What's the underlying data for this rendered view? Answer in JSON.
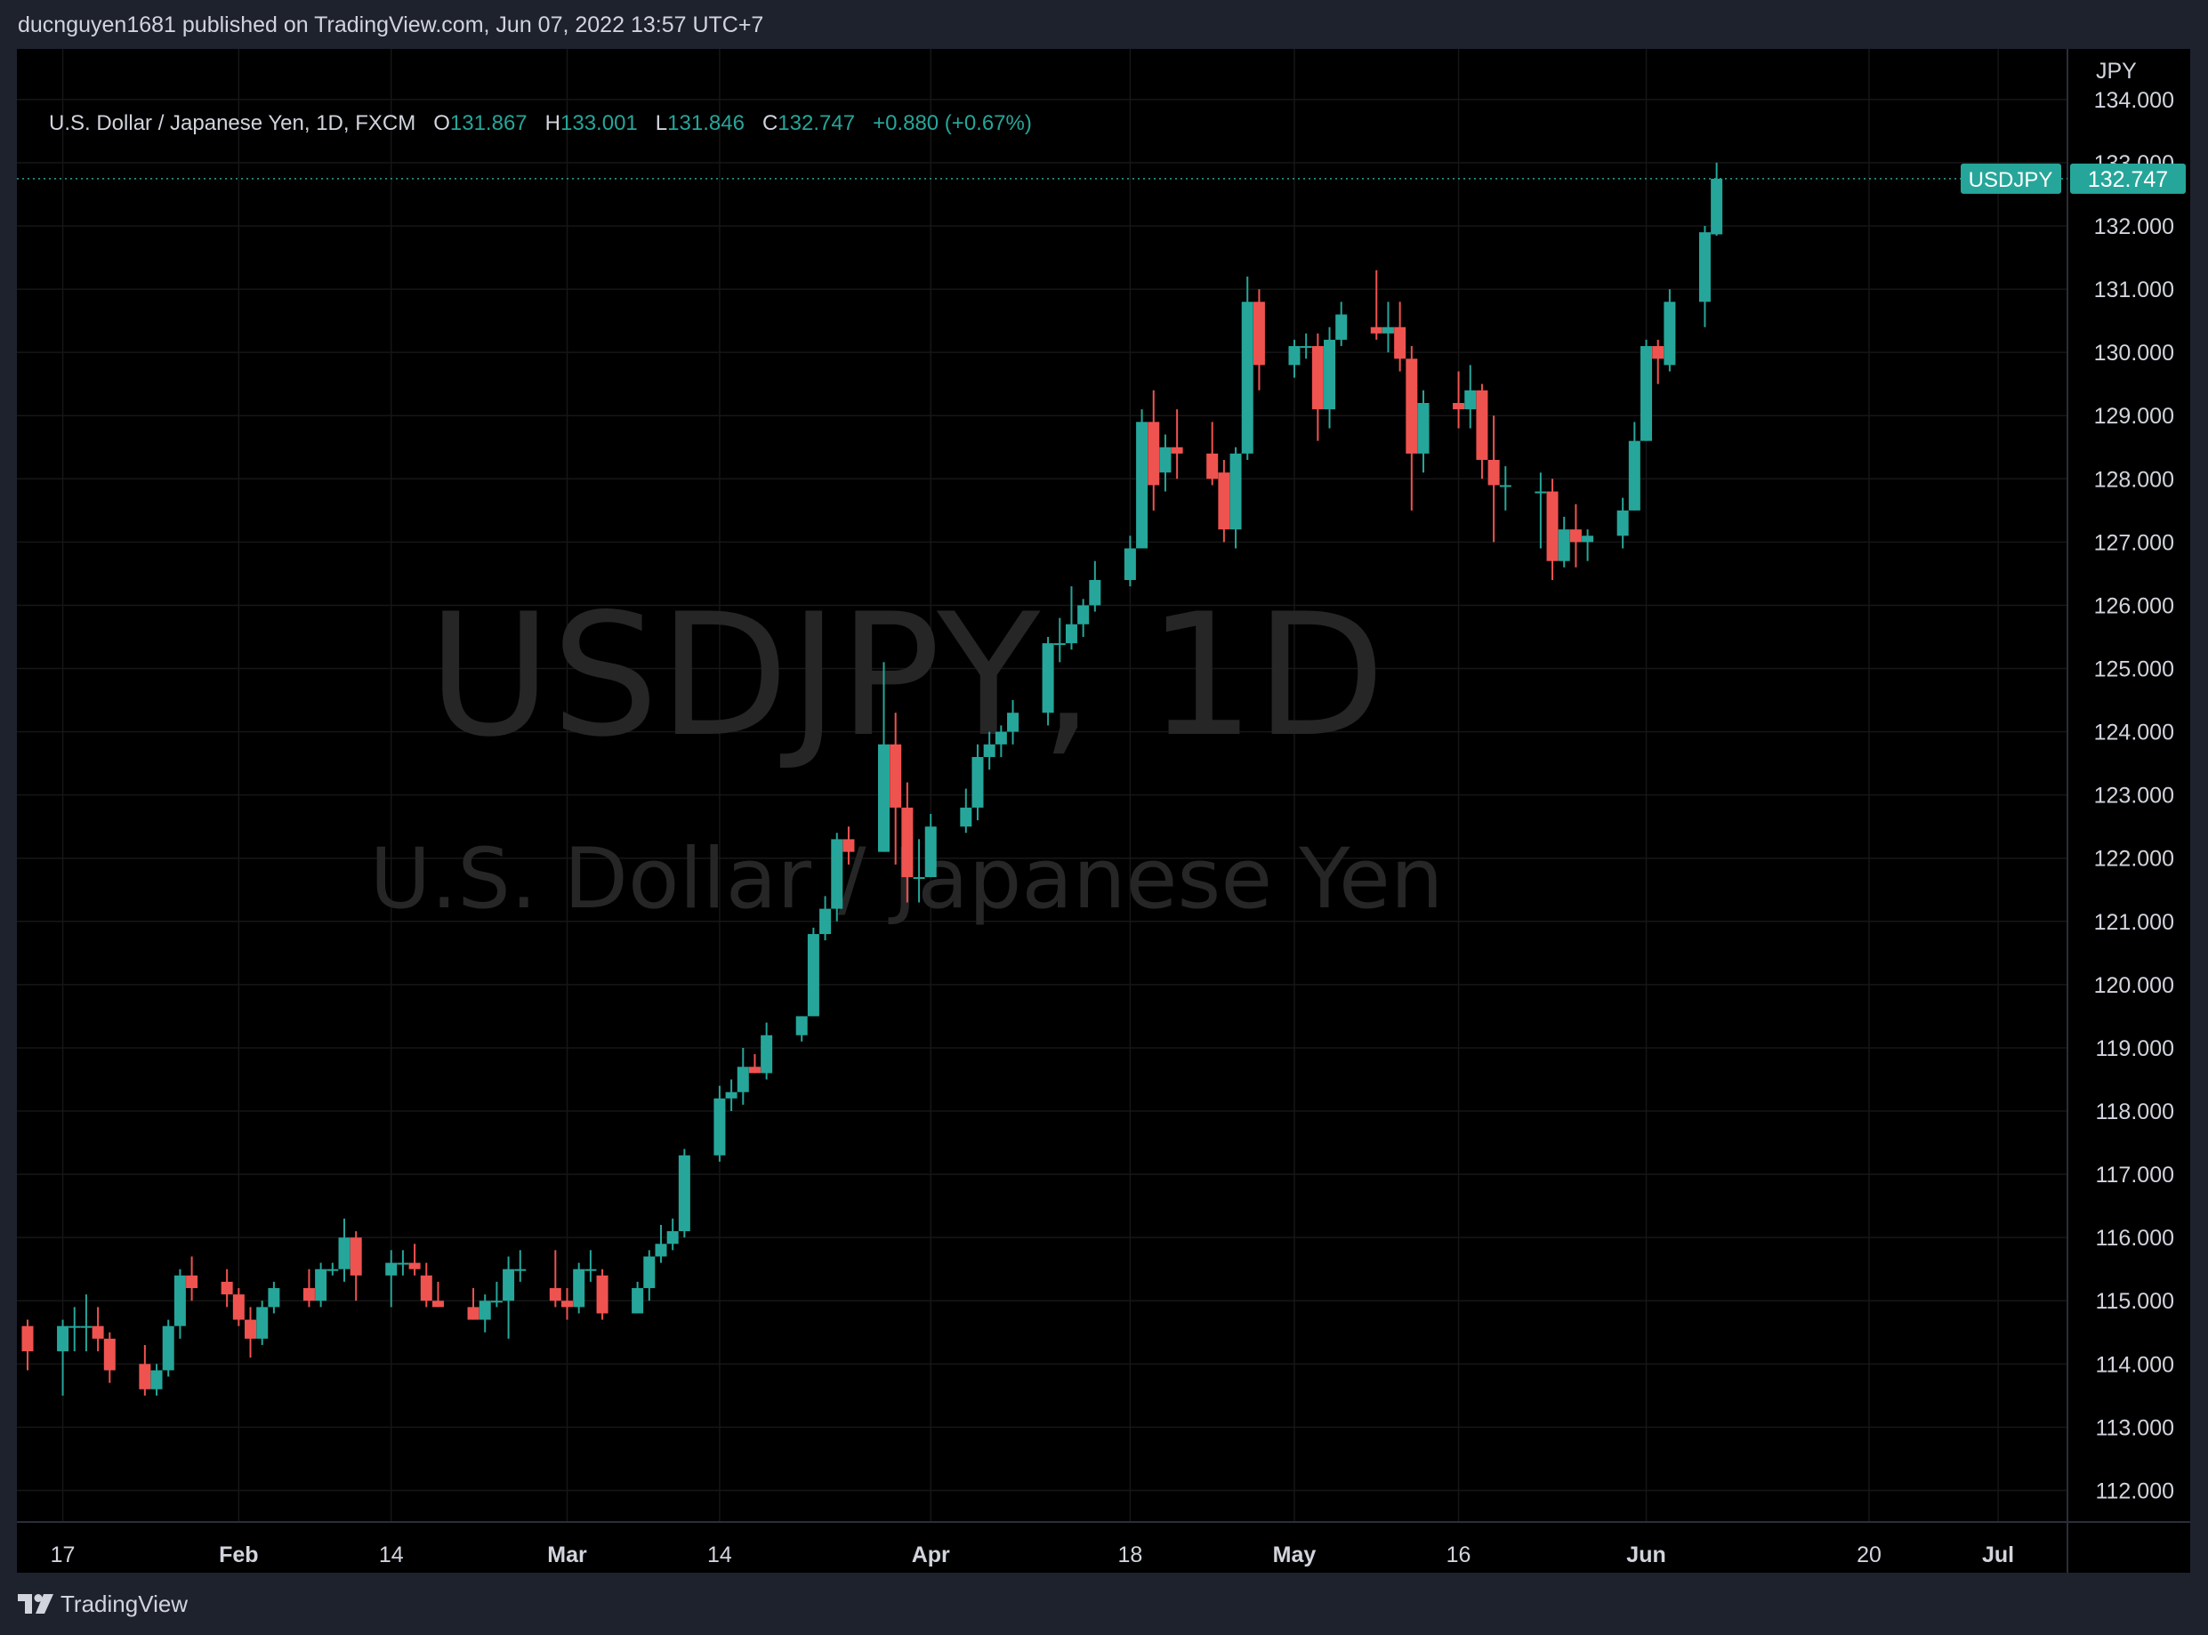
{
  "publisher_line": "ducnguyen1681 published on TradingView.com, Jun 07, 2022 13:57 UTC+7",
  "legend": {
    "symbol": "U.S. Dollar / Japanese Yen, 1D, FXCM",
    "o_label": "O",
    "o": "131.867",
    "h_label": "H",
    "h": "133.001",
    "l_label": "L",
    "l": "131.846",
    "c_label": "C",
    "c": "132.747",
    "change": "+0.880 (+0.67%)"
  },
  "watermark": {
    "line1": "USDJPY, 1D",
    "line2": "U.S. Dollar / Japanese Yen"
  },
  "price_tag": {
    "symbol": "USDJPY",
    "value": "132.747",
    "price": 132.747
  },
  "footer": {
    "brand": "TradingView"
  },
  "colors": {
    "up": "#26a69a",
    "down": "#ef5350",
    "background": "#000000",
    "frame": "#1e222d",
    "text": "#d1d4dc",
    "grid": "#1a1a1a",
    "watermark": "#2a2a2a"
  },
  "chart_data": {
    "type": "candlestick",
    "x_range": [
      "2022-01-14",
      "2022-07-06"
    ],
    "ylim": [
      111.5,
      134.8
    ],
    "grid": true,
    "y_axis_label": "JPY",
    "y_ticks": [
      "112.000",
      "113.000",
      "114.000",
      "115.000",
      "116.000",
      "117.000",
      "118.000",
      "119.000",
      "120.000",
      "121.000",
      "122.000",
      "123.000",
      "124.000",
      "125.000",
      "126.000",
      "127.000",
      "128.000",
      "129.000",
      "130.000",
      "131.000",
      "132.000",
      "133.000",
      "134.000"
    ],
    "x_ticks": [
      {
        "label": "17",
        "date": "2022-01-17",
        "bold": false
      },
      {
        "label": "Feb",
        "date": "2022-02-01",
        "bold": true
      },
      {
        "label": "14",
        "date": "2022-02-14",
        "bold": false
      },
      {
        "label": "Mar",
        "date": "2022-03-01",
        "bold": true
      },
      {
        "label": "14",
        "date": "2022-03-14",
        "bold": false
      },
      {
        "label": "Apr",
        "date": "2022-04-01",
        "bold": true
      },
      {
        "label": "18",
        "date": "2022-04-18",
        "bold": false
      },
      {
        "label": "May",
        "date": "2022-05-02",
        "bold": true
      },
      {
        "label": "16",
        "date": "2022-05-16",
        "bold": false
      },
      {
        "label": "Jun",
        "date": "2022-06-01",
        "bold": true
      },
      {
        "label": "20",
        "date": "2022-06-20",
        "bold": false
      },
      {
        "label": "Jul",
        "date": "2022-07-01",
        "bold": true
      }
    ],
    "candles": [
      {
        "d": "2022-01-14",
        "o": 114.6,
        "h": 114.7,
        "l": 113.9,
        "c": 114.2
      },
      {
        "d": "2022-01-17",
        "o": 114.2,
        "h": 114.7,
        "l": 113.5,
        "c": 114.6
      },
      {
        "d": "2022-01-18",
        "o": 114.6,
        "h": 114.9,
        "l": 114.2,
        "c": 114.6
      },
      {
        "d": "2022-01-19",
        "o": 114.6,
        "h": 115.1,
        "l": 114.2,
        "c": 114.6
      },
      {
        "d": "2022-01-20",
        "o": 114.6,
        "h": 114.9,
        "l": 114.2,
        "c": 114.4
      },
      {
        "d": "2022-01-21",
        "o": 114.4,
        "h": 114.5,
        "l": 113.7,
        "c": 113.9
      },
      {
        "d": "2022-01-24",
        "o": 114.0,
        "h": 114.3,
        "l": 113.5,
        "c": 113.6
      },
      {
        "d": "2022-01-25",
        "o": 113.6,
        "h": 114.0,
        "l": 113.5,
        "c": 113.9
      },
      {
        "d": "2022-01-26",
        "o": 113.9,
        "h": 114.7,
        "l": 113.8,
        "c": 114.6
      },
      {
        "d": "2022-01-27",
        "o": 114.6,
        "h": 115.5,
        "l": 114.4,
        "c": 115.4
      },
      {
        "d": "2022-01-28",
        "o": 115.4,
        "h": 115.7,
        "l": 115.0,
        "c": 115.2
      },
      {
        "d": "2022-01-31",
        "o": 115.3,
        "h": 115.5,
        "l": 114.9,
        "c": 115.1
      },
      {
        "d": "2022-02-01",
        "o": 115.1,
        "h": 115.2,
        "l": 114.6,
        "c": 114.7
      },
      {
        "d": "2022-02-02",
        "o": 114.7,
        "h": 114.9,
        "l": 114.1,
        "c": 114.4
      },
      {
        "d": "2022-02-03",
        "o": 114.4,
        "h": 115.0,
        "l": 114.3,
        "c": 114.9
      },
      {
        "d": "2022-02-04",
        "o": 114.9,
        "h": 115.3,
        "l": 114.8,
        "c": 115.2
      },
      {
        "d": "2022-02-07",
        "o": 115.2,
        "h": 115.5,
        "l": 114.9,
        "c": 115.0
      },
      {
        "d": "2022-02-08",
        "o": 115.0,
        "h": 115.6,
        "l": 114.9,
        "c": 115.5
      },
      {
        "d": "2022-02-09",
        "o": 115.5,
        "h": 115.6,
        "l": 115.4,
        "c": 115.5
      },
      {
        "d": "2022-02-10",
        "o": 115.5,
        "h": 116.3,
        "l": 115.3,
        "c": 116.0
      },
      {
        "d": "2022-02-11",
        "o": 116.0,
        "h": 116.1,
        "l": 115.0,
        "c": 115.4
      },
      {
        "d": "2022-02-14",
        "o": 115.4,
        "h": 115.8,
        "l": 114.9,
        "c": 115.6
      },
      {
        "d": "2022-02-15",
        "o": 115.6,
        "h": 115.8,
        "l": 115.4,
        "c": 115.6
      },
      {
        "d": "2022-02-16",
        "o": 115.6,
        "h": 115.9,
        "l": 115.4,
        "c": 115.5
      },
      {
        "d": "2022-02-17",
        "o": 115.4,
        "h": 115.6,
        "l": 114.9,
        "c": 115.0
      },
      {
        "d": "2022-02-18",
        "o": 115.0,
        "h": 115.3,
        "l": 114.9,
        "c": 114.9
      },
      {
        "d": "2022-02-21",
        "o": 114.9,
        "h": 115.2,
        "l": 114.7,
        "c": 114.7
      },
      {
        "d": "2022-02-22",
        "o": 114.7,
        "h": 115.1,
        "l": 114.5,
        "c": 115.0
      },
      {
        "d": "2022-02-23",
        "o": 115.0,
        "h": 115.3,
        "l": 114.9,
        "c": 115.0
      },
      {
        "d": "2022-02-24",
        "o": 115.0,
        "h": 115.7,
        "l": 114.4,
        "c": 115.5
      },
      {
        "d": "2022-02-25",
        "o": 115.5,
        "h": 115.8,
        "l": 115.3,
        "c": 115.5
      },
      {
        "d": "2022-02-28",
        "o": 115.2,
        "h": 115.8,
        "l": 114.9,
        "c": 115.0
      },
      {
        "d": "2022-03-01",
        "o": 115.0,
        "h": 115.2,
        "l": 114.7,
        "c": 114.9
      },
      {
        "d": "2022-03-02",
        "o": 114.9,
        "h": 115.6,
        "l": 114.8,
        "c": 115.5
      },
      {
        "d": "2022-03-03",
        "o": 115.5,
        "h": 115.8,
        "l": 115.3,
        "c": 115.5
      },
      {
        "d": "2022-03-04",
        "o": 115.4,
        "h": 115.5,
        "l": 114.7,
        "c": 114.8
      },
      {
        "d": "2022-03-07",
        "o": 114.8,
        "h": 115.3,
        "l": 114.8,
        "c": 115.2
      },
      {
        "d": "2022-03-08",
        "o": 115.2,
        "h": 115.8,
        "l": 115.0,
        "c": 115.7
      },
      {
        "d": "2022-03-09",
        "o": 115.7,
        "h": 116.2,
        "l": 115.6,
        "c": 115.9
      },
      {
        "d": "2022-03-10",
        "o": 115.9,
        "h": 116.3,
        "l": 115.8,
        "c": 116.1
      },
      {
        "d": "2022-03-11",
        "o": 116.1,
        "h": 117.4,
        "l": 116.0,
        "c": 117.3
      },
      {
        "d": "2022-03-14",
        "o": 117.3,
        "h": 118.4,
        "l": 117.2,
        "c": 118.2
      },
      {
        "d": "2022-03-15",
        "o": 118.2,
        "h": 118.5,
        "l": 118.0,
        "c": 118.3
      },
      {
        "d": "2022-03-16",
        "o": 118.3,
        "h": 119.0,
        "l": 118.1,
        "c": 118.7
      },
      {
        "d": "2022-03-17",
        "o": 118.7,
        "h": 118.9,
        "l": 118.6,
        "c": 118.6
      },
      {
        "d": "2022-03-18",
        "o": 118.6,
        "h": 119.4,
        "l": 118.5,
        "c": 119.2
      },
      {
        "d": "2022-03-21",
        "o": 119.2,
        "h": 119.5,
        "l": 119.1,
        "c": 119.5
      },
      {
        "d": "2022-03-22",
        "o": 119.5,
        "h": 120.9,
        "l": 119.5,
        "c": 120.8
      },
      {
        "d": "2022-03-23",
        "o": 120.8,
        "h": 121.4,
        "l": 120.7,
        "c": 121.2
      },
      {
        "d": "2022-03-24",
        "o": 121.2,
        "h": 122.4,
        "l": 121.0,
        "c": 122.3
      },
      {
        "d": "2022-03-25",
        "o": 122.3,
        "h": 122.5,
        "l": 121.9,
        "c": 122.1
      },
      {
        "d": "2022-03-28",
        "o": 122.1,
        "h": 125.1,
        "l": 122.1,
        "c": 123.8
      },
      {
        "d": "2022-03-29",
        "o": 123.8,
        "h": 124.3,
        "l": 121.9,
        "c": 122.8
      },
      {
        "d": "2022-03-30",
        "o": 122.8,
        "h": 123.2,
        "l": 121.3,
        "c": 121.7
      },
      {
        "d": "2022-03-31",
        "o": 121.7,
        "h": 122.3,
        "l": 121.3,
        "c": 121.7
      },
      {
        "d": "2022-04-01",
        "o": 121.7,
        "h": 122.7,
        "l": 121.7,
        "c": 122.5
      },
      {
        "d": "2022-04-04",
        "o": 122.5,
        "h": 123.1,
        "l": 122.4,
        "c": 122.8
      },
      {
        "d": "2022-04-05",
        "o": 122.8,
        "h": 123.8,
        "l": 122.6,
        "c": 123.6
      },
      {
        "d": "2022-04-06",
        "o": 123.6,
        "h": 124.0,
        "l": 123.4,
        "c": 123.8
      },
      {
        "d": "2022-04-07",
        "o": 123.8,
        "h": 124.1,
        "l": 123.6,
        "c": 124.0
      },
      {
        "d": "2022-04-08",
        "o": 124.0,
        "h": 124.5,
        "l": 123.8,
        "c": 124.3
      },
      {
        "d": "2022-04-11",
        "o": 124.3,
        "h": 125.5,
        "l": 124.1,
        "c": 125.4
      },
      {
        "d": "2022-04-12",
        "o": 125.4,
        "h": 125.8,
        "l": 125.1,
        "c": 125.4
      },
      {
        "d": "2022-04-13",
        "o": 125.4,
        "h": 126.3,
        "l": 125.3,
        "c": 125.7
      },
      {
        "d": "2022-04-14",
        "o": 125.7,
        "h": 126.1,
        "l": 125.5,
        "c": 126.0
      },
      {
        "d": "2022-04-15",
        "o": 126.0,
        "h": 126.7,
        "l": 125.9,
        "c": 126.4
      },
      {
        "d": "2022-04-18",
        "o": 126.4,
        "h": 127.1,
        "l": 126.3,
        "c": 126.9
      },
      {
        "d": "2022-04-19",
        "o": 126.9,
        "h": 129.1,
        "l": 126.9,
        "c": 128.9
      },
      {
        "d": "2022-04-20",
        "o": 128.9,
        "h": 129.4,
        "l": 127.5,
        "c": 127.9
      },
      {
        "d": "2022-04-21",
        "o": 128.1,
        "h": 128.7,
        "l": 127.8,
        "c": 128.5
      },
      {
        "d": "2022-04-22",
        "o": 128.5,
        "h": 129.1,
        "l": 128.0,
        "c": 128.4
      },
      {
        "d": "2022-04-25",
        "o": 128.4,
        "h": 128.9,
        "l": 127.9,
        "c": 128.0
      },
      {
        "d": "2022-04-26",
        "o": 128.1,
        "h": 128.3,
        "l": 127.0,
        "c": 127.2
      },
      {
        "d": "2022-04-27",
        "o": 127.2,
        "h": 128.5,
        "l": 126.9,
        "c": 128.4
      },
      {
        "d": "2022-04-28",
        "o": 128.4,
        "h": 131.2,
        "l": 128.3,
        "c": 130.8
      },
      {
        "d": "2022-04-29",
        "o": 130.8,
        "h": 131.0,
        "l": 129.4,
        "c": 129.8
      },
      {
        "d": "2022-05-02",
        "o": 129.8,
        "h": 130.2,
        "l": 129.6,
        "c": 130.1
      },
      {
        "d": "2022-05-03",
        "o": 130.1,
        "h": 130.3,
        "l": 129.9,
        "c": 130.1
      },
      {
        "d": "2022-05-04",
        "o": 130.1,
        "h": 130.3,
        "l": 128.6,
        "c": 129.1
      },
      {
        "d": "2022-05-05",
        "o": 129.1,
        "h": 130.4,
        "l": 128.8,
        "c": 130.2
      },
      {
        "d": "2022-05-06",
        "o": 130.2,
        "h": 130.8,
        "l": 130.1,
        "c": 130.6
      },
      {
        "d": "2022-05-09",
        "o": 130.4,
        "h": 131.3,
        "l": 130.2,
        "c": 130.3
      },
      {
        "d": "2022-05-10",
        "o": 130.3,
        "h": 130.8,
        "l": 130.0,
        "c": 130.4
      },
      {
        "d": "2022-05-11",
        "o": 130.4,
        "h": 130.8,
        "l": 129.7,
        "c": 129.9
      },
      {
        "d": "2022-05-12",
        "o": 129.9,
        "h": 130.1,
        "l": 127.5,
        "c": 128.4
      },
      {
        "d": "2022-05-13",
        "o": 128.4,
        "h": 129.4,
        "l": 128.1,
        "c": 129.2
      },
      {
        "d": "2022-05-16",
        "o": 129.2,
        "h": 129.7,
        "l": 128.8,
        "c": 129.1
      },
      {
        "d": "2022-05-17",
        "o": 129.1,
        "h": 129.8,
        "l": 128.8,
        "c": 129.4
      },
      {
        "d": "2022-05-18",
        "o": 129.4,
        "h": 129.5,
        "l": 128.0,
        "c": 128.3
      },
      {
        "d": "2022-05-19",
        "o": 128.3,
        "h": 129.0,
        "l": 127.0,
        "c": 127.9
      },
      {
        "d": "2022-05-20",
        "o": 127.9,
        "h": 128.2,
        "l": 127.5,
        "c": 127.9
      },
      {
        "d": "2022-05-23",
        "o": 127.8,
        "h": 128.1,
        "l": 126.9,
        "c": 127.8
      },
      {
        "d": "2022-05-24",
        "o": 127.8,
        "h": 128.0,
        "l": 126.4,
        "c": 126.7
      },
      {
        "d": "2022-05-25",
        "o": 126.7,
        "h": 127.4,
        "l": 126.6,
        "c": 127.2
      },
      {
        "d": "2022-05-26",
        "o": 127.2,
        "h": 127.6,
        "l": 126.6,
        "c": 127.0
      },
      {
        "d": "2022-05-27",
        "o": 127.0,
        "h": 127.2,
        "l": 126.7,
        "c": 127.1
      },
      {
        "d": "2022-05-30",
        "o": 127.1,
        "h": 127.7,
        "l": 126.9,
        "c": 127.5
      },
      {
        "d": "2022-05-31",
        "o": 127.5,
        "h": 128.9,
        "l": 127.5,
        "c": 128.6
      },
      {
        "d": "2022-06-01",
        "o": 128.6,
        "h": 130.2,
        "l": 128.6,
        "c": 130.1
      },
      {
        "d": "2022-06-02",
        "o": 130.1,
        "h": 130.2,
        "l": 129.5,
        "c": 129.9
      },
      {
        "d": "2022-06-03",
        "o": 129.8,
        "h": 131.0,
        "l": 129.7,
        "c": 130.8
      },
      {
        "d": "2022-06-06",
        "o": 130.8,
        "h": 132.0,
        "l": 130.4,
        "c": 131.9
      },
      {
        "d": "2022-06-07",
        "o": 131.867,
        "h": 133.001,
        "l": 131.846,
        "c": 132.747
      }
    ]
  }
}
